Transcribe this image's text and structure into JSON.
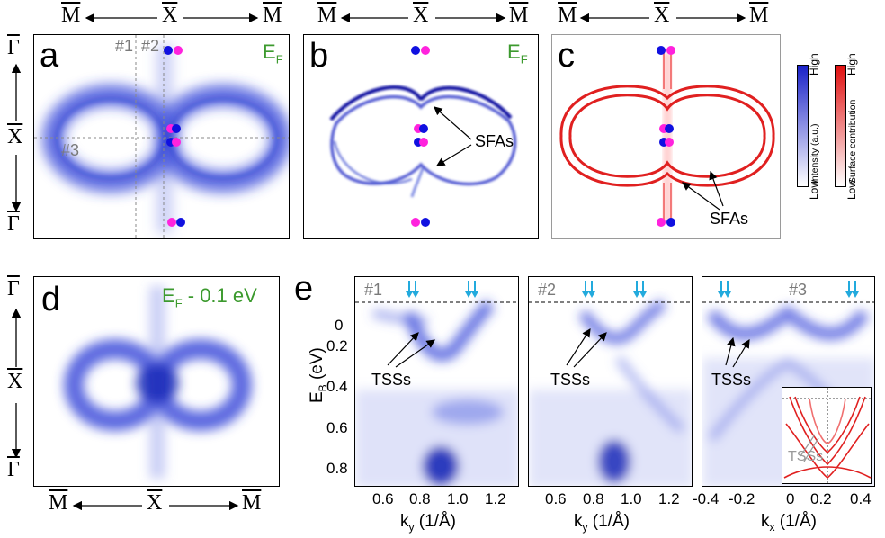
{
  "labels": {
    "M": "M",
    "X": "X",
    "G": "Γ",
    "panel_a": "a",
    "panel_b": "b",
    "panel_c": "c",
    "panel_d": "d",
    "panel_e": "e",
    "ef": "E",
    "ef_sub": "F",
    "ef_offset": " - 0.1 eV",
    "cut1": "#1",
    "cut2": "#2",
    "cut3": "#3",
    "sfas": "SFAs",
    "tsss": "TSSs",
    "ylabel_main": "E",
    "ylabel_sub": "B",
    "ylabel_unit": " (eV)",
    "xlabel_ky_main": "k",
    "xlabel_ky_sub": "y",
    "xlabel_kx_main": "k",
    "xlabel_kx_sub": "x",
    "xlabel_unit": " (1/Å)"
  },
  "colorbars": {
    "intensity": {
      "high": "High",
      "low": "Low",
      "title": "Intensity (a.u.)",
      "color": "#1a22c8"
    },
    "surface": {
      "high": "High",
      "low": "Low",
      "title": "Surface contribution",
      "color": "#e01010"
    }
  },
  "ticks": {
    "energy": [
      "0",
      "0.2",
      "0.4",
      "0.6",
      "0.8"
    ],
    "ky1": [
      "0.6",
      "0.8",
      "1.0",
      "1.2"
    ],
    "ky2": [
      "0.6",
      "0.8",
      "1.0",
      "1.2"
    ],
    "kx": [
      "-0.4",
      "-0.2",
      "0",
      "0.2",
      "0.4"
    ]
  },
  "colors": {
    "spectral": "#2a3ad6",
    "surface_red": "#e02020",
    "magenta": "#ff22dd",
    "blue_dot": "#1010e0",
    "label_green": "#3c9a2e",
    "arrow_cyan": "#22aadd"
  }
}
